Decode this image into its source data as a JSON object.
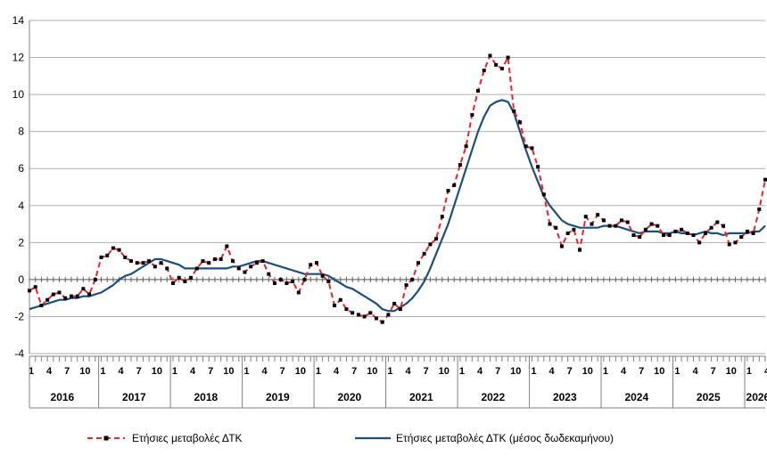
{
  "chart_data": {
    "type": "line",
    "title": "",
    "xlabel": "",
    "ylabel": "",
    "ylim": [
      -4,
      14
    ],
    "yticks": [
      -4,
      -2,
      0,
      2,
      4,
      6,
      8,
      10,
      12,
      14
    ],
    "ytick_labels": [
      "-4",
      "-2",
      "0",
      "2",
      "4",
      "6",
      "8",
      "10",
      "12",
      "14"
    ],
    "grid": "horizontal",
    "legend": "bottom",
    "month_tick_labels": [
      "1",
      "4",
      "7",
      "10"
    ],
    "years": [
      "2016",
      "2017",
      "2018",
      "2019",
      "2020",
      "2021",
      "2022",
      "2023",
      "2024",
      "2025",
      "2026"
    ],
    "start": "2016-01",
    "end": "2026-04",
    "series": [
      {
        "name": "Ετήσιες μεταβολές ΔΤΚ",
        "color": "#e8262b",
        "marker_color": "#000000",
        "style": "dashed-markers",
        "values": [
          -0.6,
          -0.4,
          -1.4,
          -1.1,
          -0.8,
          -0.7,
          -1.0,
          -0.9,
          -0.9,
          -0.5,
          -0.8,
          0.0,
          1.2,
          1.3,
          1.7,
          1.6,
          1.2,
          1.0,
          0.9,
          0.9,
          1.0,
          0.7,
          0.9,
          0.6,
          -0.2,
          0.1,
          -0.1,
          0.1,
          0.6,
          1.0,
          0.9,
          1.1,
          1.1,
          1.8,
          1.0,
          0.6,
          0.4,
          0.7,
          0.9,
          1.0,
          0.3,
          -0.2,
          0.0,
          -0.2,
          -0.1,
          -0.7,
          0.0,
          0.8,
          0.9,
          0.2,
          -0.1,
          -1.4,
          -1.1,
          -1.6,
          -1.8,
          -1.9,
          -2.0,
          -1.8,
          -2.1,
          -2.3,
          -1.9,
          -1.3,
          -1.6,
          -0.3,
          0.0,
          0.9,
          1.4,
          1.9,
          2.2,
          3.4,
          4.8,
          5.1,
          6.2,
          7.2,
          8.9,
          10.2,
          11.3,
          12.1,
          11.6,
          11.4,
          12.0,
          9.1,
          8.5,
          7.2,
          7.1,
          6.1,
          4.6,
          3.0,
          2.8,
          1.8,
          2.5,
          2.7,
          1.6,
          3.4,
          3.0,
          3.5,
          3.2,
          2.9,
          2.9,
          3.2,
          3.1,
          2.4,
          2.3,
          2.7,
          3.0,
          2.9,
          2.4,
          2.4,
          2.6,
          2.7,
          2.5,
          2.4,
          2.0,
          2.5,
          2.8,
          3.1,
          2.9,
          1.9,
          2.0,
          2.3,
          2.6,
          2.5,
          3.8,
          5.4
        ]
      },
      {
        "name": "Ετήσιες μεταβολές ΔΤΚ (μέσος δωδεκαμήνου)",
        "color": "#1f4e79",
        "style": "solid",
        "values": [
          -1.6,
          -1.5,
          -1.4,
          -1.3,
          -1.2,
          -1.1,
          -1.1,
          -1.0,
          -1.0,
          -0.9,
          -0.9,
          -0.8,
          -0.7,
          -0.5,
          -0.3,
          0.0,
          0.2,
          0.3,
          0.5,
          0.7,
          0.9,
          1.1,
          1.1,
          1.0,
          0.9,
          0.8,
          0.6,
          0.6,
          0.6,
          0.6,
          0.6,
          0.6,
          0.6,
          0.6,
          0.7,
          0.7,
          0.8,
          0.9,
          1.0,
          1.0,
          0.9,
          0.8,
          0.7,
          0.6,
          0.5,
          0.4,
          0.3,
          0.3,
          0.3,
          0.3,
          0.2,
          0.0,
          -0.2,
          -0.4,
          -0.5,
          -0.7,
          -0.9,
          -1.1,
          -1.3,
          -1.6,
          -1.7,
          -1.7,
          -1.5,
          -1.3,
          -1.0,
          -0.6,
          -0.1,
          0.6,
          1.4,
          2.2,
          3.0,
          4.0,
          5.0,
          6.0,
          7.0,
          8.0,
          8.8,
          9.4,
          9.6,
          9.7,
          9.6,
          9.0,
          8.0,
          7.0,
          6.1,
          5.3,
          4.5,
          4.0,
          3.6,
          3.2,
          3.0,
          2.9,
          2.8,
          2.8,
          2.8,
          2.8,
          2.9,
          2.9,
          2.9,
          2.8,
          2.7,
          2.6,
          2.5,
          2.6,
          2.6,
          2.6,
          2.5,
          2.5,
          2.6,
          2.5,
          2.5,
          2.4,
          2.5,
          2.6,
          2.5,
          2.5,
          2.4,
          2.5,
          2.5,
          2.5,
          2.5,
          2.6,
          2.6,
          2.9
        ]
      }
    ]
  }
}
